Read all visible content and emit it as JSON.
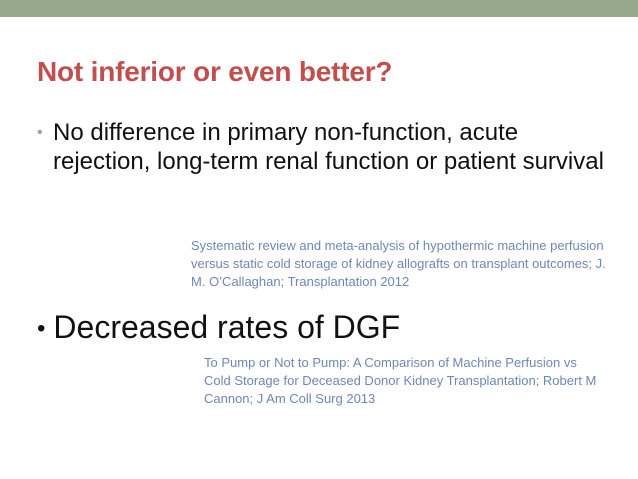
{
  "slide": {
    "title": "Not inferior or even better?",
    "bullets": [
      {
        "marker": "•",
        "text": "No difference in primary non-function, acute rejection, long-term renal function or patient survival"
      },
      {
        "marker": "•",
        "text": "Decreased rates  of DGF"
      }
    ],
    "references": [
      "Systematic review and meta-analysis of hypothermic machine perfusion versus static cold storage of kidney allografts on transplant outcomes; J. M. O’Callaghan; Transplantation 2012",
      "To Pump or Not to Pump: A Comparison of Machine Perfusion vs Cold Storage for Deceased Donor Kidney Transplantation; Robert M Cannon; J Am Coll Surg 2013"
    ]
  },
  "colors": {
    "title": "#c0504d",
    "accent_bar": "#97a78a",
    "reference_text": "#6f87b4",
    "body_text": "#111111"
  }
}
